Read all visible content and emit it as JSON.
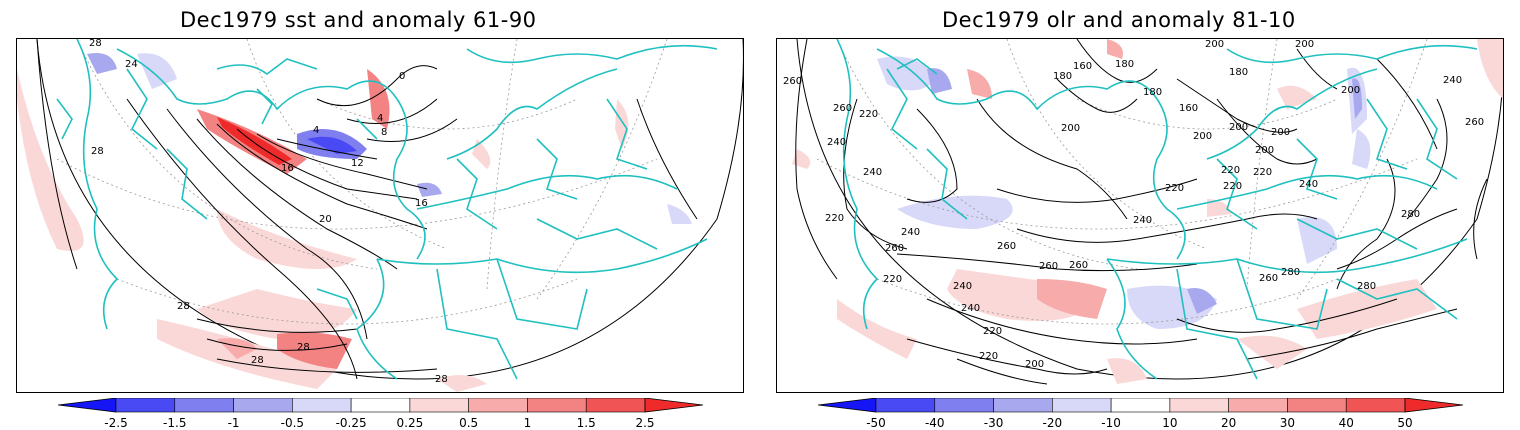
{
  "left": {
    "title": "Dec1979 sst and anomaly 61-90",
    "colorbar": {
      "ticks": [
        "-2.5",
        "-1.5",
        "-1",
        "-0.5",
        "-0.25",
        "0.25",
        "0.5",
        "1",
        "1.5",
        "2.5"
      ],
      "colors": [
        "#1515f5",
        "#4a4af5",
        "#7f7ff0",
        "#a8a8ee",
        "#d8d8f8",
        "#ffffff",
        "#fbd8d8",
        "#f7abab",
        "#f38383",
        "#f15454",
        "#ee2a2a"
      ]
    },
    "contour_labels": [
      "28",
      "24",
      "28",
      "0",
      "4",
      "4",
      "8",
      "12",
      "16",
      "16",
      "20",
      "28",
      "28",
      "28",
      "28"
    ]
  },
  "right": {
    "title": "Dec1979 olr and anomaly 81-10",
    "colorbar": {
      "ticks": [
        "-50",
        "-40",
        "-30",
        "-20",
        "-10",
        "10",
        "20",
        "30",
        "40",
        "50"
      ],
      "colors": [
        "#1515f5",
        "#4a4af5",
        "#7f7ff0",
        "#a8a8ee",
        "#d8d8f8",
        "#ffffff",
        "#fbd8d8",
        "#f7abab",
        "#f38383",
        "#f15454",
        "#ee2a2a"
      ]
    },
    "contour_labels": [
      "200",
      "200",
      "180",
      "160",
      "180",
      "260",
      "260",
      "240",
      "220",
      "240",
      "260",
      "260",
      "240",
      "220",
      "220",
      "240",
      "260",
      "280",
      "280",
      "260",
      "240",
      "220",
      "200",
      "200",
      "220",
      "180",
      "160",
      "200",
      "200",
      "220",
      "200",
      "200",
      "240",
      "240",
      "260",
      "280",
      "220",
      "220",
      "240",
      "260",
      "220",
      "200",
      "180"
    ]
  },
  "colors": {
    "coast": "#20c0c0",
    "contour": "#000000",
    "grid": "#999999",
    "frame": "#000000"
  }
}
